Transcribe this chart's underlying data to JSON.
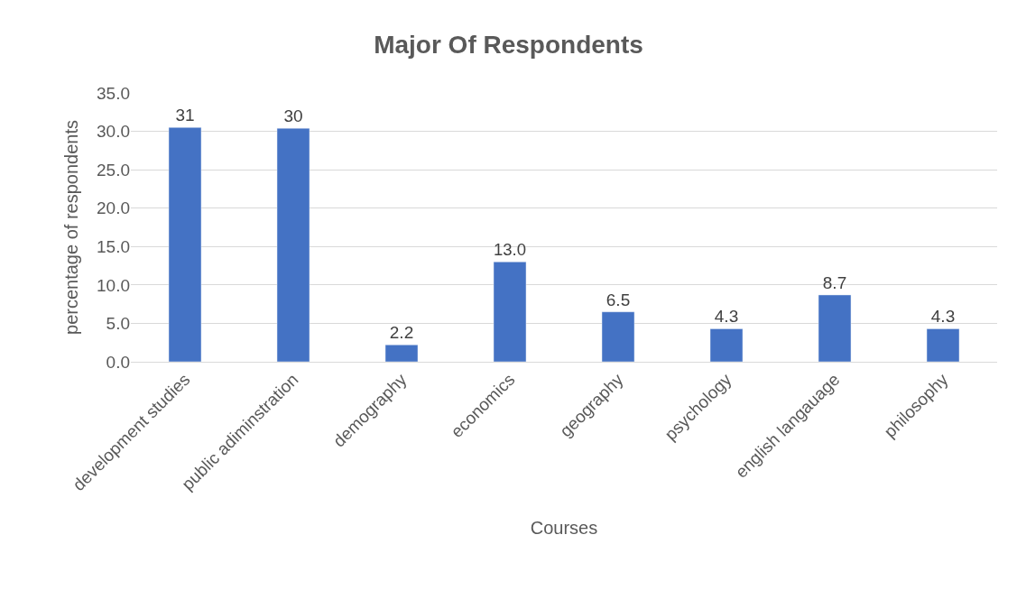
{
  "chart_data": {
    "type": "bar",
    "title": "Major Of Respondents",
    "xlabel": "Courses",
    "ylabel": "percentage of respondents",
    "categories": [
      "development studies",
      "public adiminstration",
      "demography",
      "economics",
      "geography",
      "psychology",
      "english langauage",
      "philosophy"
    ],
    "values": [
      30.5,
      30.4,
      2.2,
      13.0,
      6.5,
      4.3,
      8.7,
      4.3
    ],
    "value_labels": [
      "31",
      "30",
      "2.2",
      "13.0",
      "6.5",
      "4.3",
      "8.7",
      "4.3"
    ],
    "color": "#4472c4",
    "ylim": [
      0,
      35
    ],
    "yticks": [
      {
        "value": 0,
        "label": "0.0"
      },
      {
        "value": 5,
        "label": "5.0"
      },
      {
        "value": 10,
        "label": "10.0"
      },
      {
        "value": 15,
        "label": "15.0"
      },
      {
        "value": 20,
        "label": "20.0"
      },
      {
        "value": 25,
        "label": "25.0"
      },
      {
        "value": 30,
        "label": "30.0"
      },
      {
        "value": 35,
        "label": "35.0"
      }
    ],
    "grid": "y"
  }
}
